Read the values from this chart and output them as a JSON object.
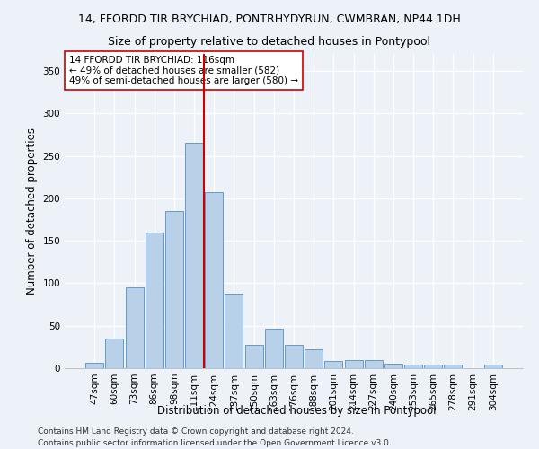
{
  "title1": "14, FFORDD TIR BRYCHIAD, PONTRHYDYRUN, CWMBRAN, NP44 1DH",
  "title2": "Size of property relative to detached houses in Pontypool",
  "xlabel": "Distribution of detached houses by size in Pontypool",
  "ylabel": "Number of detached properties",
  "categories": [
    "47sqm",
    "60sqm",
    "73sqm",
    "86sqm",
    "98sqm",
    "111sqm",
    "124sqm",
    "137sqm",
    "150sqm",
    "163sqm",
    "176sqm",
    "188sqm",
    "201sqm",
    "214sqm",
    "227sqm",
    "240sqm",
    "253sqm",
    "265sqm",
    "278sqm",
    "291sqm",
    "304sqm"
  ],
  "values": [
    6,
    35,
    95,
    160,
    185,
    265,
    207,
    88,
    27,
    47,
    27,
    22,
    8,
    9,
    9,
    5,
    4,
    4,
    4,
    0,
    4
  ],
  "bar_color": "#b8d0e8",
  "bar_edge_color": "#6699cc",
  "vline_x_index": 5.5,
  "vline_color": "#cc0000",
  "annotation_text": "14 FFORDD TIR BRYCHIAD: 116sqm\n← 49% of detached houses are smaller (582)\n49% of semi-detached houses are larger (580) →",
  "annotation_box_color": "white",
  "annotation_box_edge_color": "#cc0000",
  "ylim": [
    0,
    370
  ],
  "yticks": [
    0,
    50,
    100,
    150,
    200,
    250,
    300,
    350
  ],
  "footnote1": "Contains HM Land Registry data © Crown copyright and database right 2024.",
  "footnote2": "Contains public sector information licensed under the Open Government Licence v3.0.",
  "background_color": "#edf2f9",
  "grid_color": "white",
  "title1_fontsize": 9,
  "title2_fontsize": 9,
  "axis_label_fontsize": 8.5,
  "tick_fontsize": 7.5,
  "annotation_fontsize": 7.5,
  "footnote_fontsize": 6.5
}
